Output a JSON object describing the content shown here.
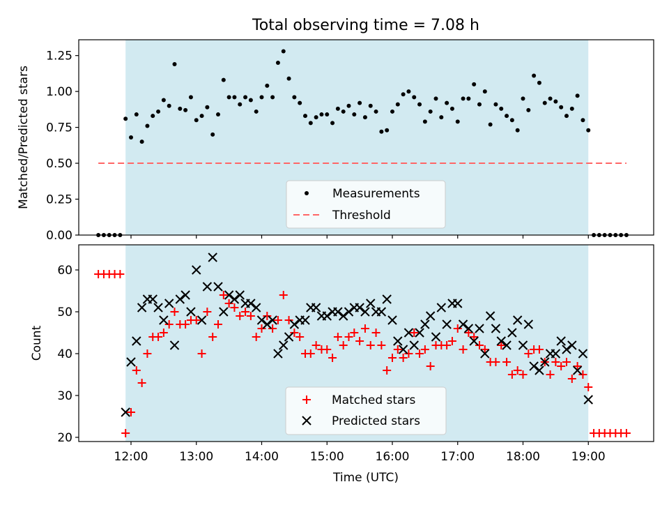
{
  "chart_data": [
    {
      "type": "scatter",
      "title": "Total observing time = 7.08 h",
      "xlabel": "",
      "ylabel": "Matched/Predicted stars",
      "ylim": [
        0,
        1.36
      ],
      "xlim": [
        "11:12",
        "20:00"
      ],
      "y_ticks": [
        "0.00",
        "0.25",
        "0.50",
        "0.75",
        "1.00",
        "1.25"
      ],
      "x_ticks": [
        "12:00",
        "13:00",
        "14:00",
        "15:00",
        "16:00",
        "17:00",
        "18:00",
        "19:00"
      ],
      "observing_window": {
        "start": "11:55",
        "end": "19:00",
        "color": "#add8e6"
      },
      "series": [
        {
          "name": "Measurements",
          "marker": "dot",
          "color": "#000000",
          "x": [
            "11:30",
            "11:35",
            "11:40",
            "11:45",
            "11:50",
            "11:55",
            "12:00",
            "12:05",
            "12:10",
            "12:15",
            "12:20",
            "12:25",
            "12:30",
            "12:35",
            "12:40",
            "12:45",
            "12:50",
            "12:55",
            "13:00",
            "13:05",
            "13:10",
            "13:15",
            "13:20",
            "13:25",
            "13:30",
            "13:35",
            "13:40",
            "13:45",
            "13:50",
            "13:55",
            "14:00",
            "14:05",
            "14:10",
            "14:15",
            "14:20",
            "14:25",
            "14:30",
            "14:35",
            "14:40",
            "14:45",
            "14:50",
            "14:55",
            "15:00",
            "15:05",
            "15:10",
            "15:15",
            "15:20",
            "15:25",
            "15:30",
            "15:35",
            "15:40",
            "15:45",
            "15:50",
            "15:55",
            "16:00",
            "16:05",
            "16:10",
            "16:15",
            "16:20",
            "16:25",
            "16:30",
            "16:35",
            "16:40",
            "16:45",
            "16:50",
            "16:55",
            "17:00",
            "17:05",
            "17:10",
            "17:15",
            "17:20",
            "17:25",
            "17:30",
            "17:35",
            "17:40",
            "17:45",
            "17:50",
            "17:55",
            "18:00",
            "18:05",
            "18:10",
            "18:15",
            "18:20",
            "18:25",
            "18:30",
            "18:35",
            "18:40",
            "18:45",
            "18:50",
            "18:55",
            "19:00",
            "19:05",
            "19:10",
            "19:15",
            "19:20",
            "19:25",
            "19:30",
            "19:35"
          ],
          "y": [
            0,
            0,
            0,
            0,
            0,
            0.81,
            0.68,
            0.84,
            0.65,
            0.76,
            0.83,
            0.86,
            0.94,
            0.9,
            1.19,
            0.88,
            0.87,
            0.96,
            0.8,
            0.83,
            0.89,
            0.7,
            0.84,
            1.08,
            0.96,
            0.96,
            0.91,
            0.96,
            0.94,
            0.86,
            0.96,
            1.04,
            0.96,
            1.2,
            1.28,
            1.09,
            0.96,
            0.92,
            0.83,
            0.78,
            0.82,
            0.84,
            0.84,
            0.78,
            0.88,
            0.86,
            0.9,
            0.84,
            0.92,
            0.82,
            0.9,
            0.86,
            0.72,
            0.73,
            0.86,
            0.91,
            0.98,
            1.0,
            0.96,
            0.91,
            0.79,
            0.86,
            0.95,
            0.82,
            0.92,
            0.88,
            0.79,
            0.95,
            0.95,
            1.05,
            0.91,
            1.0,
            0.77,
            0.91,
            0.88,
            0.83,
            0.8,
            0.73,
            0.95,
            0.87,
            1.11,
            1.06,
            0.92,
            0.95,
            0.93,
            0.89,
            0.83,
            0.88,
            0.97,
            0.8,
            0.73,
            0,
            0,
            0,
            0,
            0,
            0,
            0
          ]
        },
        {
          "name": "Threshold",
          "marker": "dashed-line",
          "color": "#ff6666",
          "x": [
            "11:30",
            "19:35"
          ],
          "y": [
            0.5,
            0.5
          ]
        }
      ],
      "legend": {
        "position": "bottom-center"
      }
    },
    {
      "type": "scatter",
      "title": "",
      "xlabel": "Time (UTC)",
      "ylabel": "Count",
      "ylim": [
        19,
        66
      ],
      "xlim": [
        "11:12",
        "20:00"
      ],
      "y_ticks": [
        "20",
        "30",
        "40",
        "50",
        "60"
      ],
      "x_ticks": [
        "12:00",
        "13:00",
        "14:00",
        "15:00",
        "16:00",
        "17:00",
        "18:00",
        "19:00"
      ],
      "observing_window": {
        "start": "11:55",
        "end": "19:00",
        "color": "#add8e6"
      },
      "series": [
        {
          "name": "Matched stars",
          "marker": "plus",
          "color": "#ff0000",
          "x": [
            "11:30",
            "11:35",
            "11:40",
            "11:45",
            "11:50",
            "11:55",
            "12:00",
            "12:05",
            "12:10",
            "12:15",
            "12:20",
            "12:25",
            "12:30",
            "12:35",
            "12:40",
            "12:45",
            "12:50",
            "12:55",
            "13:00",
            "13:05",
            "13:10",
            "13:15",
            "13:20",
            "13:25",
            "13:30",
            "13:35",
            "13:40",
            "13:45",
            "13:50",
            "13:55",
            "14:00",
            "14:05",
            "14:10",
            "14:15",
            "14:20",
            "14:25",
            "14:30",
            "14:35",
            "14:40",
            "14:45",
            "14:50",
            "14:55",
            "15:00",
            "15:05",
            "15:10",
            "15:15",
            "15:20",
            "15:25",
            "15:30",
            "15:35",
            "15:40",
            "15:45",
            "15:50",
            "15:55",
            "16:00",
            "16:05",
            "16:10",
            "16:15",
            "16:20",
            "16:25",
            "16:30",
            "16:35",
            "16:40",
            "16:45",
            "16:50",
            "16:55",
            "17:00",
            "17:05",
            "17:10",
            "17:15",
            "17:20",
            "17:25",
            "17:30",
            "17:35",
            "17:40",
            "17:45",
            "17:50",
            "17:55",
            "18:00",
            "18:05",
            "18:10",
            "18:15",
            "18:20",
            "18:25",
            "18:30",
            "18:35",
            "18:40",
            "18:45",
            "18:50",
            "18:55",
            "19:00",
            "19:05",
            "19:10",
            "19:15",
            "19:20",
            "19:25",
            "19:30",
            "19:35"
          ],
          "y": [
            59,
            59,
            59,
            59,
            59,
            21,
            26,
            36,
            33,
            40,
            44,
            44,
            45,
            47,
            50,
            47,
            47,
            48,
            48,
            40,
            50,
            44,
            47,
            54,
            52,
            51,
            49,
            50,
            49,
            44,
            46,
            49,
            46,
            48,
            54,
            48,
            45,
            44,
            40,
            40,
            42,
            41,
            41,
            39,
            44,
            42,
            44,
            45,
            43,
            46,
            42,
            45,
            42,
            36,
            39,
            41,
            39,
            40,
            45,
            40,
            41,
            37,
            42,
            42,
            42,
            43,
            46,
            41,
            45,
            44,
            42,
            41,
            38,
            38,
            42,
            38,
            35,
            36,
            35,
            40,
            41,
            41,
            38,
            35,
            38,
            37,
            38,
            34,
            37,
            35,
            32,
            21,
            21,
            21,
            21,
            21,
            21,
            21
          ]
        },
        {
          "name": "Predicted stars",
          "marker": "x",
          "color": "#000000",
          "x": [
            "11:55",
            "12:00",
            "12:05",
            "12:10",
            "12:15",
            "12:20",
            "12:25",
            "12:30",
            "12:35",
            "12:40",
            "12:45",
            "12:50",
            "12:55",
            "13:00",
            "13:05",
            "13:10",
            "13:15",
            "13:20",
            "13:25",
            "13:30",
            "13:35",
            "13:40",
            "13:45",
            "13:50",
            "13:55",
            "14:00",
            "14:05",
            "14:10",
            "14:15",
            "14:20",
            "14:25",
            "14:30",
            "14:35",
            "14:40",
            "14:45",
            "14:50",
            "14:55",
            "15:00",
            "15:05",
            "15:10",
            "15:15",
            "15:20",
            "15:25",
            "15:30",
            "15:35",
            "15:40",
            "15:45",
            "15:50",
            "15:55",
            "16:00",
            "16:05",
            "16:10",
            "16:15",
            "16:20",
            "16:25",
            "16:30",
            "16:35",
            "16:40",
            "16:45",
            "16:50",
            "16:55",
            "17:00",
            "17:05",
            "17:10",
            "17:15",
            "17:20",
            "17:25",
            "17:30",
            "17:35",
            "17:40",
            "17:45",
            "17:50",
            "17:55",
            "18:00",
            "18:05",
            "18:10",
            "18:15",
            "18:20",
            "18:25",
            "18:30",
            "18:35",
            "18:40",
            "18:45",
            "18:50",
            "18:55",
            "19:00"
          ],
          "y": [
            26,
            38,
            43,
            51,
            53,
            53,
            51,
            48,
            52,
            42,
            53,
            54,
            50,
            60,
            48,
            56,
            63,
            56,
            50,
            54,
            53,
            54,
            52,
            52,
            51,
            48,
            47,
            48,
            40,
            42,
            44,
            47,
            48,
            48,
            51,
            51,
            49,
            49,
            50,
            50,
            49,
            50,
            51,
            51,
            50,
            52,
            50,
            50,
            53,
            48,
            43,
            41,
            45,
            42,
            45,
            47,
            49,
            44,
            51,
            47,
            52,
            52,
            47,
            46,
            43,
            46,
            40,
            49,
            46,
            43,
            42,
            45,
            48,
            42,
            47,
            37,
            36,
            38,
            40,
            40,
            43,
            41,
            42,
            36,
            40,
            29
          ]
        }
      ],
      "legend": {
        "position": "bottom-center"
      }
    }
  ]
}
